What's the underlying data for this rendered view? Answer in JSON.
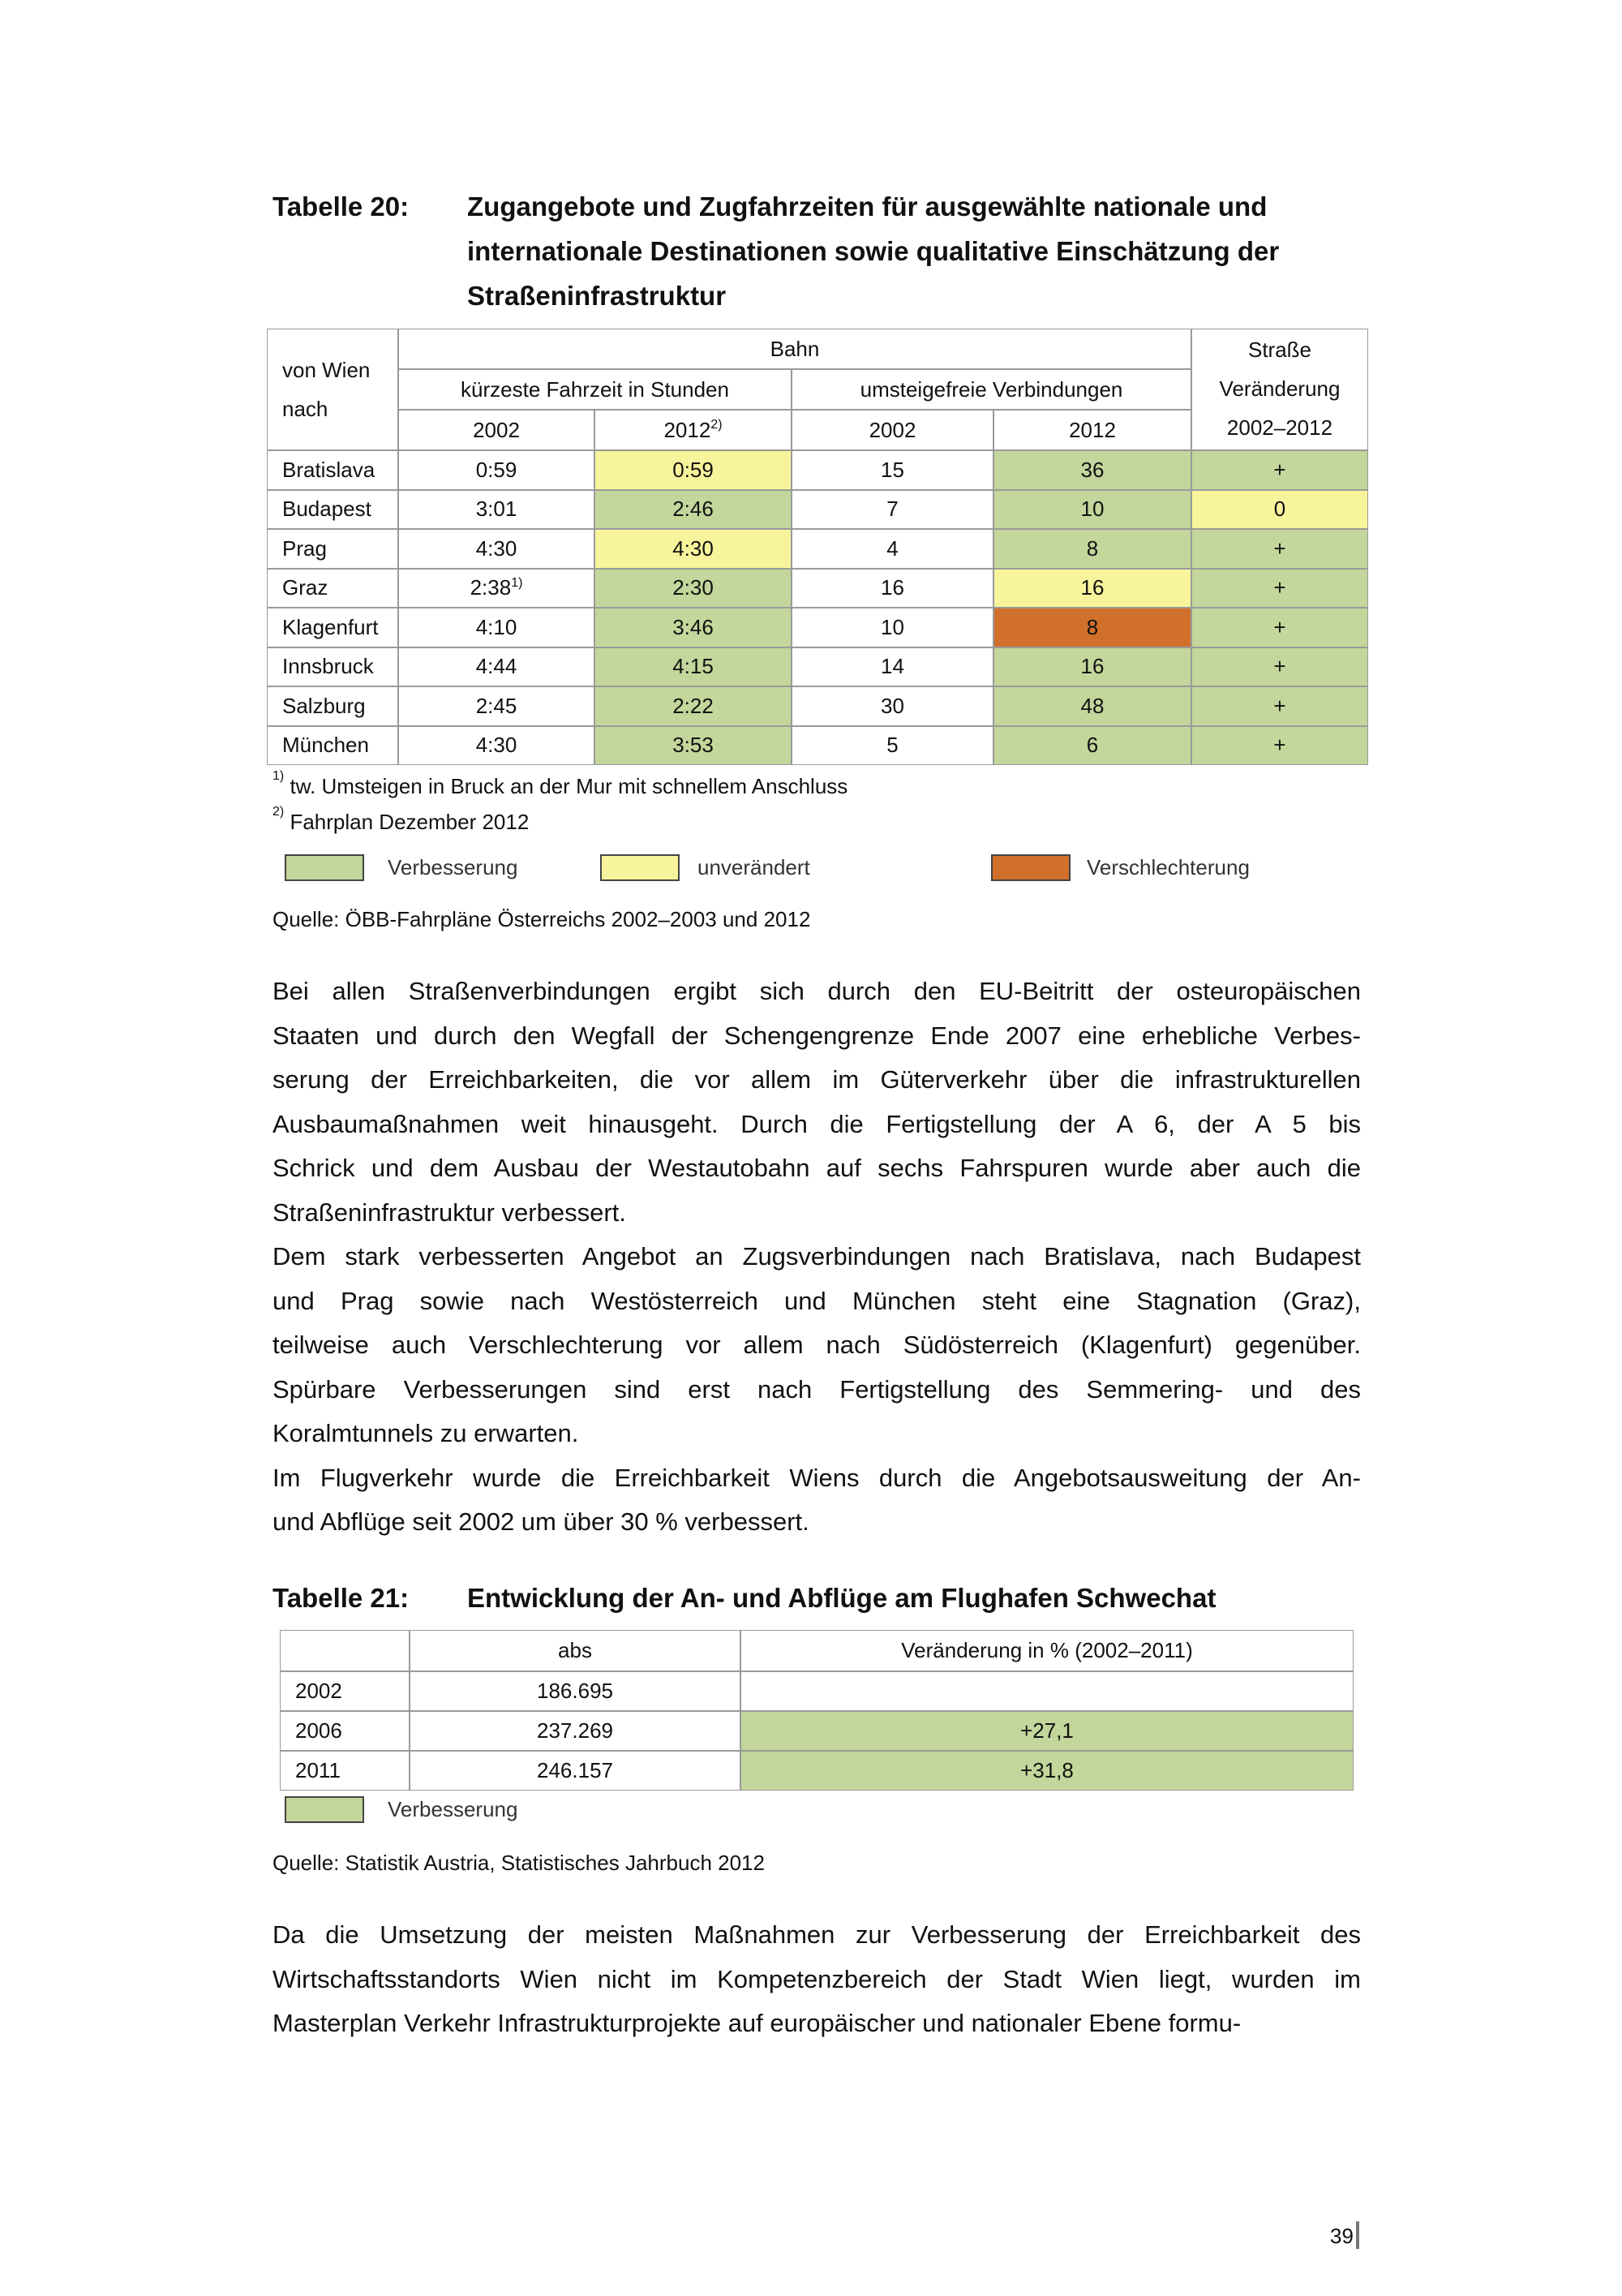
{
  "table20": {
    "label": "Tabelle 20:",
    "title_lines": [
      "Zugangebote und Zugfahrzeiten für ausgewählte nationale und",
      "internationale Destinationen sowie qualitative Einschätzung der",
      "Straßeninfrastruktur"
    ],
    "header": {
      "row_head": "von Wien nach",
      "bahn": "Bahn",
      "fahrzeit": "kürzeste Fahrzeit in Stunden",
      "umsteige": "umsteigefreie Verbindungen",
      "strasse": [
        "Straße",
        "Veränderung",
        "2002–2012"
      ],
      "years": [
        {
          "text": "2002"
        },
        {
          "text": "2012",
          "sup": "2)"
        },
        {
          "text": "2002"
        },
        {
          "text": "2012"
        }
      ]
    },
    "rows": [
      {
        "city": "Bratislava",
        "cells": [
          {
            "text": "0:59"
          },
          {
            "text": "0:59",
            "fill": "#f8f49c"
          },
          {
            "text": "15"
          },
          {
            "text": "36",
            "fill": "#c3d69b"
          },
          {
            "text": "+",
            "fill": "#c3d69b"
          }
        ]
      },
      {
        "city": "Budapest",
        "cells": [
          {
            "text": "3:01"
          },
          {
            "text": "2:46",
            "fill": "#c3d69b"
          },
          {
            "text": "7"
          },
          {
            "text": "10",
            "fill": "#c3d69b"
          },
          {
            "text": "0",
            "fill": "#f8f49c"
          }
        ]
      },
      {
        "city": "Prag",
        "cells": [
          {
            "text": "4:30"
          },
          {
            "text": "4:30",
            "fill": "#f8f49c"
          },
          {
            "text": "4"
          },
          {
            "text": "8",
            "fill": "#c3d69b"
          },
          {
            "text": "+",
            "fill": "#c3d69b"
          }
        ]
      },
      {
        "city": "Graz",
        "cells": [
          {
            "text": "2:38",
            "sup": "1)"
          },
          {
            "text": "2:30",
            "fill": "#c3d69b"
          },
          {
            "text": "16"
          },
          {
            "text": "16",
            "fill": "#f8f49c"
          },
          {
            "text": "+",
            "fill": "#c3d69b"
          }
        ]
      },
      {
        "city": "Klagenfurt",
        "cells": [
          {
            "text": "4:10"
          },
          {
            "text": "3:46",
            "fill": "#c3d69b"
          },
          {
            "text": "10"
          },
          {
            "text": "8",
            "fill": "#d0702a"
          },
          {
            "text": "+",
            "fill": "#c3d69b"
          }
        ]
      },
      {
        "city": "Innsbruck",
        "cells": [
          {
            "text": "4:44"
          },
          {
            "text": "4:15",
            "fill": "#c3d69b"
          },
          {
            "text": "14"
          },
          {
            "text": "16",
            "fill": "#c3d69b"
          },
          {
            "text": "+",
            "fill": "#c3d69b"
          }
        ]
      },
      {
        "city": "Salzburg",
        "cells": [
          {
            "text": "2:45"
          },
          {
            "text": "2:22",
            "fill": "#c3d69b"
          },
          {
            "text": "30"
          },
          {
            "text": "48",
            "fill": "#c3d69b"
          },
          {
            "text": "+",
            "fill": "#c3d69b"
          }
        ]
      },
      {
        "city": "München",
        "cells": [
          {
            "text": "4:30"
          },
          {
            "text": "3:53",
            "fill": "#c3d69b"
          },
          {
            "text": "5"
          },
          {
            "text": "6",
            "fill": "#c3d69b"
          },
          {
            "text": "+",
            "fill": "#c3d69b"
          }
        ]
      }
    ],
    "footnotes": [
      {
        "mark": "1)",
        "text": "tw. Umsteigen in Bruck an der Mur mit schnellem Anschluss"
      },
      {
        "mark": "2)",
        "text": "Fahrplan Dezember 2012"
      }
    ],
    "legend": [
      {
        "label": "Verbesserung",
        "color": "#c3d69b"
      },
      {
        "label": "unverändert",
        "color": "#f8f49c"
      },
      {
        "label": "Verschlechterung",
        "color": "#d0702a"
      }
    ],
    "source": "Quelle: ÖBB-Fahrpläne Österreichs 2002–2003 und 2012"
  },
  "body1": [
    [
      "Bei allen Straßenverbindungen ergibt sich durch den EU-Beitritt der osteuropäischen",
      "Staaten und durch den Wegfall der Schengengrenze Ende 2007 eine erhebliche Verbes-",
      "serung der Erreichbarkeiten, die vor allem im Güterverkehr über die infrastrukturellen",
      "Ausbaumaßnahmen weit hinausgeht. Durch die Fertigstellung der A 6, der A 5 bis",
      "Schrick und dem Ausbau der Westautobahn auf sechs Fahrspuren wurde aber auch die",
      "Straßeninfrastruktur verbessert."
    ],
    [
      "Dem stark verbesserten Angebot an Zugsverbindungen nach Bratislava, nach Budapest",
      "und Prag sowie nach Westösterreich und München steht eine Stagnation (Graz),",
      "teilweise auch Verschlechterung vor allem nach Südösterreich (Klagenfurt) gegenüber.",
      "Spürbare Verbesserungen sind erst nach Fertigstellung des Semmering- und des",
      "Koralmtunnels zu erwarten."
    ],
    [
      "Im Flugverkehr wurde die Erreichbarkeit Wiens durch die Angebotsausweitung der An-",
      "und Abflüge seit 2002 um über 30 % verbessert."
    ]
  ],
  "table21": {
    "label": "Tabelle 21:",
    "title": "Entwicklung der An- und Abflüge am Flughafen Schwechat",
    "header": {
      "abs": "abs",
      "change": "Veränderung in % (2002–2011)"
    },
    "rows": [
      {
        "year": "2002",
        "abs": "186.695"
      },
      {
        "year": "2006",
        "abs": "237.269",
        "change": "+27,1",
        "fill": "#c3d69b"
      },
      {
        "year": "2011",
        "abs": "246.157",
        "change": "+31,8",
        "fill": "#c3d69b"
      }
    ],
    "legend": [
      {
        "label": "Verbesserung",
        "color": "#c3d69b"
      }
    ],
    "source": "Quelle: Statistik Austria, Statistisches Jahrbuch 2012"
  },
  "body2": [
    [
      "Da die Umsetzung der meisten Maßnahmen zur Verbesserung der Erreichbarkeit des",
      "Wirtschaftsstandorts Wien nicht im Kompetenzbereich der Stadt Wien liegt, wurden im",
      "Masterplan Verkehr Infrastrukturprojekte auf europäischer und nationaler Ebene formu-"
    ]
  ],
  "page_number": "39"
}
